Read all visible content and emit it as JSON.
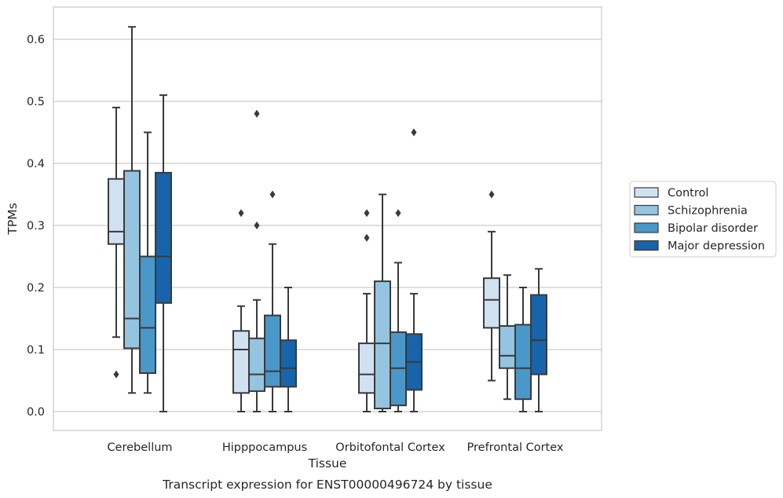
{
  "chart_data": {
    "type": "box",
    "xlabel": "Tissue",
    "ylabel": "TPMs",
    "caption": "Transcript expression for ENST00000496724 by tissue",
    "ylim": [
      -0.03,
      0.65
    ],
    "yticks": [
      "0.0",
      "0.1",
      "0.2",
      "0.3",
      "0.4",
      "0.5",
      "0.6"
    ],
    "grid": "horizontal",
    "legend_position": "right",
    "categories": [
      "Cerebellum",
      "Hipppocampus",
      "Orbitofontal Cortex",
      "Prefrontal Cortex"
    ],
    "series": [
      {
        "name": "Control",
        "color": "#d0e1f2",
        "boxes": [
          {
            "whisker_low": 0.12,
            "q1": 0.27,
            "median": 0.29,
            "q3": 0.375,
            "whisker_high": 0.49,
            "outliers": [
              0.06
            ]
          },
          {
            "whisker_low": 0.0,
            "q1": 0.03,
            "median": 0.1,
            "q3": 0.13,
            "whisker_high": 0.17,
            "outliers": [
              0.32
            ]
          },
          {
            "whisker_low": 0.0,
            "q1": 0.03,
            "median": 0.06,
            "q3": 0.11,
            "whisker_high": 0.19,
            "outliers": [
              0.28,
              0.32
            ]
          },
          {
            "whisker_low": 0.05,
            "q1": 0.135,
            "median": 0.18,
            "q3": 0.215,
            "whisker_high": 0.29,
            "outliers": [
              0.35
            ]
          }
        ]
      },
      {
        "name": "Schizophrenia",
        "color": "#94c4df",
        "boxes": [
          {
            "whisker_low": 0.03,
            "q1": 0.102,
            "median": 0.15,
            "q3": 0.388,
            "whisker_high": 0.62,
            "outliers": []
          },
          {
            "whisker_low": 0.0,
            "q1": 0.033,
            "median": 0.06,
            "q3": 0.118,
            "whisker_high": 0.18,
            "outliers": [
              0.3,
              0.48
            ]
          },
          {
            "whisker_low": 0.0,
            "q1": 0.005,
            "median": 0.11,
            "q3": 0.21,
            "whisker_high": 0.35,
            "outliers": []
          },
          {
            "whisker_low": 0.02,
            "q1": 0.07,
            "median": 0.09,
            "q3": 0.138,
            "whisker_high": 0.22,
            "outliers": []
          }
        ]
      },
      {
        "name": "Bipolar disorder",
        "color": "#4a98c9",
        "boxes": [
          {
            "whisker_low": 0.03,
            "q1": 0.062,
            "median": 0.135,
            "q3": 0.25,
            "whisker_high": 0.45,
            "outliers": []
          },
          {
            "whisker_low": 0.0,
            "q1": 0.04,
            "median": 0.065,
            "q3": 0.155,
            "whisker_high": 0.27,
            "outliers": [
              0.35
            ]
          },
          {
            "whisker_low": 0.0,
            "q1": 0.01,
            "median": 0.07,
            "q3": 0.128,
            "whisker_high": 0.24,
            "outliers": [
              0.32
            ]
          },
          {
            "whisker_low": 0.0,
            "q1": 0.02,
            "median": 0.07,
            "q3": 0.14,
            "whisker_high": 0.2,
            "outliers": []
          }
        ]
      },
      {
        "name": "Major depression",
        "color": "#1764ab",
        "boxes": [
          {
            "whisker_low": 0.0,
            "q1": 0.175,
            "median": 0.25,
            "q3": 0.385,
            "whisker_high": 0.51,
            "outliers": []
          },
          {
            "whisker_low": 0.0,
            "q1": 0.04,
            "median": 0.07,
            "q3": 0.115,
            "whisker_high": 0.2,
            "outliers": []
          },
          {
            "whisker_low": 0.0,
            "q1": 0.035,
            "median": 0.08,
            "q3": 0.125,
            "whisker_high": 0.19,
            "outliers": [
              0.45
            ]
          },
          {
            "whisker_low": 0.0,
            "q1": 0.06,
            "median": 0.115,
            "q3": 0.188,
            "whisker_high": 0.23,
            "outliers": []
          }
        ]
      }
    ]
  }
}
